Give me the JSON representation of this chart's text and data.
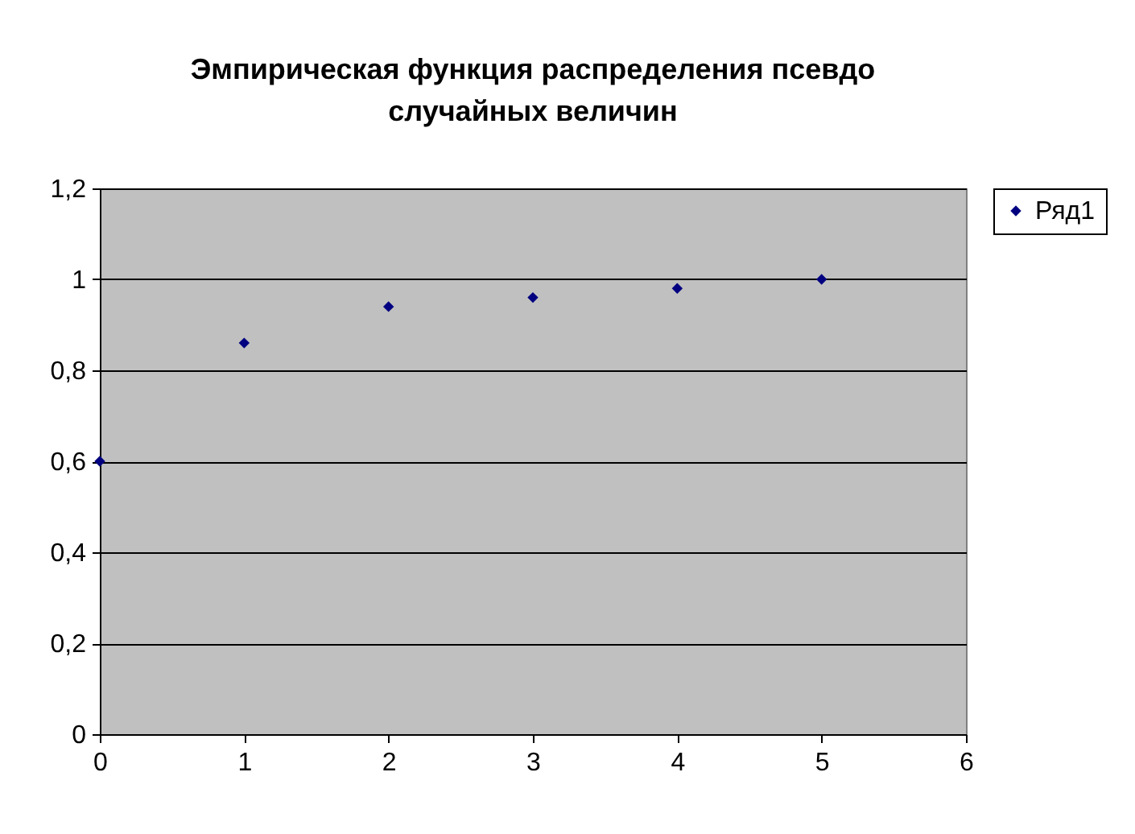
{
  "chart_data": {
    "type": "scatter",
    "title": "Эмпирическая функция распределения псевдо случайных величин",
    "x": [
      0,
      1,
      2,
      3,
      4,
      5
    ],
    "series": [
      {
        "name": "Ряд1",
        "color": "#000080",
        "values": [
          0.6,
          0.86,
          0.94,
          0.96,
          0.98,
          1.0
        ]
      }
    ],
    "xlim": [
      0,
      6
    ],
    "xticks": [
      0,
      1,
      2,
      3,
      4,
      5,
      6
    ],
    "ylim": [
      0,
      1.2
    ],
    "yticks": [
      0,
      {
        "value": 0.2,
        "label": "0,2"
      },
      {
        "value": 0.4,
        "label": "0,4"
      },
      {
        "value": 0.6,
        "label": "0,6"
      },
      {
        "value": 0.8,
        "label": "0,8"
      },
      1,
      {
        "value": 1.2,
        "label": "1,2"
      }
    ],
    "grid": "y",
    "legend": "right",
    "marker": "diamond"
  }
}
